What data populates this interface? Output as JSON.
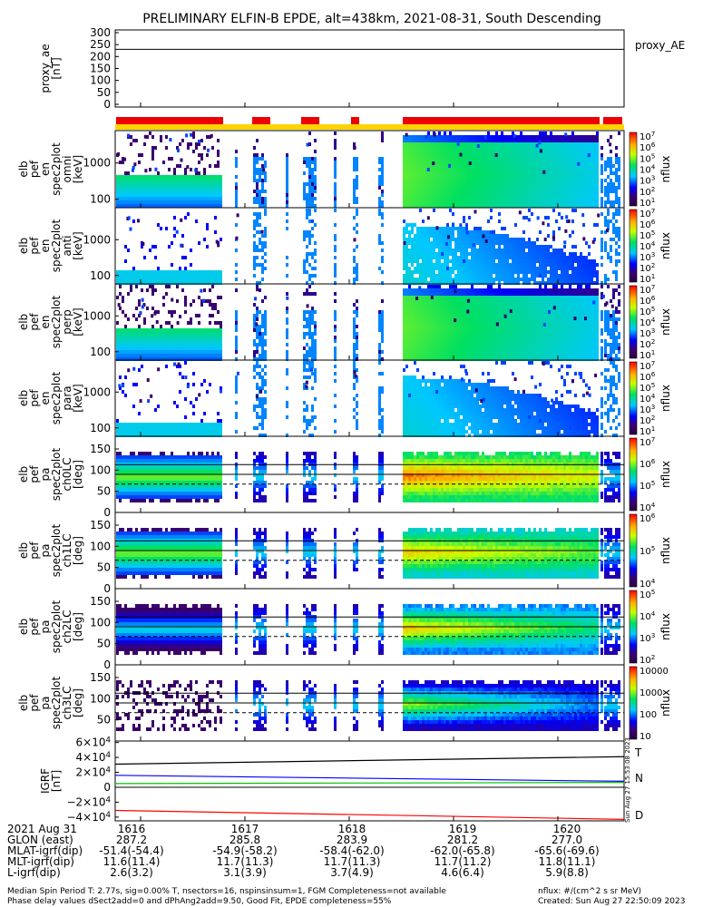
{
  "title": "PRELIMINARY ELFIN-B EPDE, alt=438km, 2021-08-31, South Descending",
  "colors": {
    "flag_red": "#ee0000",
    "flag_yellow": "#ffd400",
    "grf_t": "#000000",
    "grf_n": "#0000ff",
    "grf_green": "#00c000",
    "grf_d": "#ff0000"
  },
  "chart_data": [
    {
      "type": "line",
      "ylabel_lines": [
        "proxy_ae",
        "[nT]"
      ],
      "ylim": [
        0,
        300
      ],
      "yticks": [
        "300",
        "250",
        "200",
        "150",
        "100",
        "50",
        "0"
      ],
      "legend": [
        "proxy_AE"
      ],
      "series": [
        {
          "name": "proxy_AE",
          "values": [
            230,
            230
          ]
        }
      ]
    },
    {
      "type": "heatmap",
      "ylabel_lines": [
        "elb",
        "pef",
        "en",
        "spec2plot",
        "omni",
        "[keV]"
      ],
      "yticks": [
        "1000",
        "100"
      ],
      "zlabel": "nflux",
      "ztick_values": [
        "10^7",
        "10^6",
        "10^5",
        "10^4",
        "10^3",
        "10^2",
        "10^1"
      ]
    },
    {
      "type": "heatmap",
      "ylabel_lines": [
        "elb",
        "pef",
        "en",
        "spec2plot",
        "anti",
        "[keV]"
      ],
      "yticks": [
        "1000",
        "100"
      ],
      "zlabel": "nflux",
      "ztick_values": [
        "10^7",
        "10^6",
        "10^5",
        "10^4",
        "10^3",
        "10^2",
        "10^1"
      ]
    },
    {
      "type": "heatmap",
      "ylabel_lines": [
        "elb",
        "pef",
        "en",
        "spec2plot",
        "perp",
        "[keV]"
      ],
      "yticks": [
        "1000",
        "100"
      ],
      "zlabel": "nflux",
      "ztick_values": [
        "10^7",
        "10^6",
        "10^5",
        "10^4",
        "10^3",
        "10^2",
        "10^1"
      ]
    },
    {
      "type": "heatmap",
      "ylabel_lines": [
        "elb",
        "pef",
        "en",
        "spec2plot",
        "para",
        "[keV]"
      ],
      "yticks": [
        "1000",
        "100"
      ],
      "zlabel": "nflux",
      "ztick_values": [
        "10^7",
        "10^6",
        "10^5",
        "10^4",
        "10^3",
        "10^2",
        "10^1"
      ]
    },
    {
      "type": "heatmap",
      "ylabel_lines": [
        "elb",
        "pef",
        "pa",
        "spec2plot",
        "ch0LC",
        "[deg]"
      ],
      "yticks": [
        "150",
        "100",
        "50",
        "0"
      ],
      "ylim": [
        0,
        180
      ],
      "zlabel": "nflux",
      "ztick_values": [
        "10^7",
        "10^6",
        "10^5",
        "10^4"
      ],
      "lines_deg": [
        113,
        90,
        67
      ]
    },
    {
      "type": "heatmap",
      "ylabel_lines": [
        "elb",
        "pef",
        "pa",
        "spec2plot",
        "ch1LC",
        "[deg]"
      ],
      "yticks": [
        "150",
        "100",
        "50",
        "0"
      ],
      "ylim": [
        0,
        180
      ],
      "zlabel": "nflux",
      "ztick_values": [
        "10^6",
        "10^5",
        "10^4"
      ],
      "lines_deg": [
        113,
        90,
        67
      ]
    },
    {
      "type": "heatmap",
      "ylabel_lines": [
        "elb",
        "pef",
        "pa",
        "spec2plot",
        "ch2LC",
        "[deg]"
      ],
      "yticks": [
        "150",
        "100",
        "50",
        "0"
      ],
      "ylim": [
        0,
        180
      ],
      "zlabel": "nflux",
      "ztick_values": [
        "10^5",
        "10^4",
        "10^3",
        "10^2"
      ],
      "lines_deg": [
        113,
        90,
        67
      ]
    },
    {
      "type": "heatmap",
      "ylabel_lines": [
        "elb",
        "pef",
        "pa",
        "spec2plot",
        "ch3LC",
        "[deg]"
      ],
      "yticks": [
        "150",
        "100",
        "50"
      ],
      "ylim": [
        0,
        180
      ],
      "zlabel": "nflux",
      "ztick_values": [
        "10000",
        "1000",
        "100",
        "10"
      ],
      "lines_deg": [
        113,
        90,
        67
      ]
    },
    {
      "type": "line",
      "ylabel_lines": [
        "IGRF",
        "[nT]"
      ],
      "ylim": [
        -45000,
        62000
      ],
      "yticks": [
        "6×10^4",
        "4×10^4",
        "2×10^4",
        "0",
        "−2×10^4",
        "−4×10^4"
      ],
      "legend": [
        "T",
        "N",
        "D"
      ],
      "side_text": "Sun Aug 27 15:53:08 2023",
      "series": [
        {
          "name": "T",
          "color": "#000000",
          "values": [
            31000,
            41000
          ]
        },
        {
          "name": "N",
          "color": "#0000ff",
          "values": [
            16000,
            8000
          ]
        },
        {
          "name": "",
          "color": "#00c000",
          "values": [
            5000,
            6500
          ]
        },
        {
          "name": "D",
          "color": "#ff0000",
          "values": [
            -31000,
            -43000
          ]
        }
      ]
    }
  ],
  "footer": {
    "rows": [
      {
        "label": "2021 Aug 31",
        "values": [
          "1616",
          "1617",
          "1618",
          "1619",
          "1620"
        ]
      },
      {
        "label": "GLON (east)",
        "values": [
          "287.2",
          "285.8",
          "283.9",
          "281.2",
          "277.0"
        ]
      },
      {
        "label": "MLAT-igrf(dip)",
        "values": [
          "-51.4(-54.4)",
          "-54.9(-58.2)",
          "-58.4(-62.0)",
          "-62.0(-65.8)",
          "-65.6(-69.6)"
        ]
      },
      {
        "label": "MLT-igrf(dip)",
        "values": [
          "11.6(11.4)",
          "11.7(11.3)",
          "11.7(11.3)",
          "11.7(11.2)",
          "11.8(11.1)"
        ]
      },
      {
        "label": "L-igrf(dip)",
        "values": [
          "2.6(3.2)",
          "3.1(3.9)",
          "3.7(4.9)",
          "4.6(6.4)",
          "5.9(8.8)"
        ]
      }
    ],
    "note_left_1": "Median Spin Period T: 2.77s, sig=0.00% T, nsectors=16, nspinsinsum=1, FGM Completeness=not available",
    "note_left_2": "Phase delay values dSect2add=0 and dPhAng2add=9.50, Good Fit, EPDE completeness=55%",
    "note_right_1": "nflux: #/(cm^2 s sr MeV)",
    "note_right_2": "Created: Sun Aug 27 22:50:09 2023"
  }
}
